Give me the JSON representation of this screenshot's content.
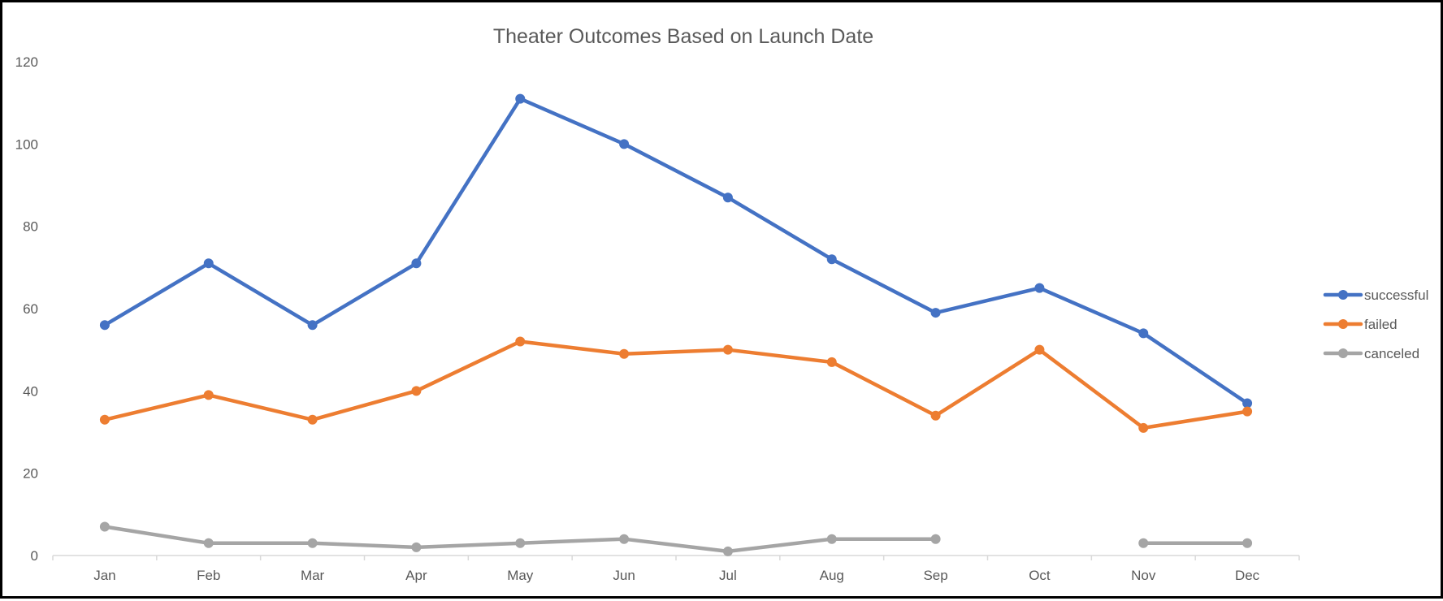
{
  "chart_data": {
    "type": "line",
    "title": "Theater Outcomes Based on Launch Date",
    "xlabel": "",
    "ylabel": "",
    "categories": [
      "Jan",
      "Feb",
      "Mar",
      "Apr",
      "May",
      "Jun",
      "Jul",
      "Aug",
      "Sep",
      "Oct",
      "Nov",
      "Dec"
    ],
    "ylim": [
      0,
      120
    ],
    "yticks": [
      "0",
      "20",
      "40",
      "60",
      "80",
      "100",
      "120"
    ],
    "grid": false,
    "legend_position": "right",
    "series": [
      {
        "name": "successful",
        "color": "#4472C4",
        "values": [
          56,
          71,
          56,
          71,
          111,
          100,
          87,
          72,
          59,
          65,
          54,
          37
        ]
      },
      {
        "name": "failed",
        "color": "#ED7D31",
        "values": [
          33,
          39,
          33,
          40,
          52,
          49,
          50,
          47,
          34,
          50,
          31,
          35
        ]
      },
      {
        "name": "canceled",
        "color": "#A5A5A5",
        "values": [
          7,
          3,
          3,
          2,
          3,
          4,
          1,
          4,
          4,
          null,
          3,
          3
        ]
      }
    ]
  }
}
